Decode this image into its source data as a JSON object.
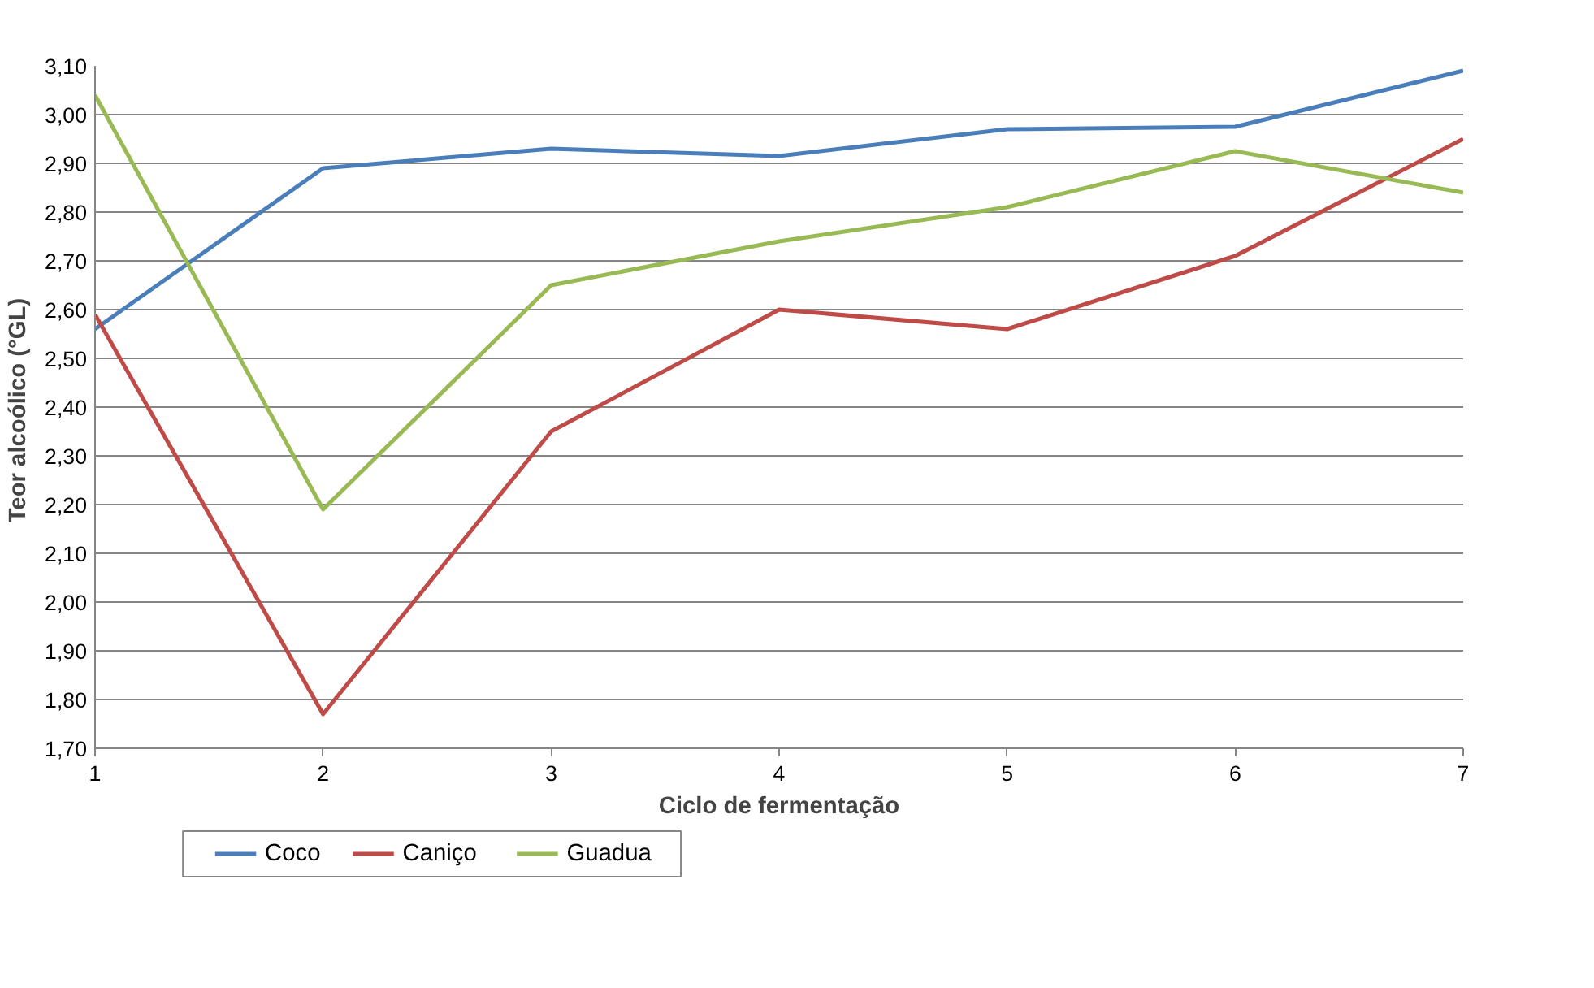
{
  "chart_data": {
    "type": "line",
    "xlabel": "Ciclo de fermentação",
    "ylabel": "Teor  alcoólico (°GL)",
    "x": [
      1,
      2,
      3,
      4,
      5,
      6,
      7
    ],
    "series": [
      {
        "name": "Coco",
        "color": "#4a7ebb",
        "values": [
          2.56,
          2.89,
          2.93,
          2.915,
          2.97,
          2.975,
          3.09
        ]
      },
      {
        "name": "Caniço",
        "color": "#be4b48",
        "values": [
          2.59,
          1.77,
          2.35,
          2.6,
          2.56,
          2.71,
          2.95
        ]
      },
      {
        "name": "Guadua",
        "color": "#98b954",
        "values": [
          3.04,
          2.19,
          2.65,
          2.74,
          2.81,
          2.925,
          2.84
        ]
      }
    ],
    "xlim": [
      1,
      7
    ],
    "xticks": [
      1,
      2,
      3,
      4,
      5,
      6,
      7
    ],
    "ylim": [
      1.7,
      3.1
    ],
    "yticks": [
      {
        "value": 1.7,
        "label": "1,70"
      },
      {
        "value": 1.8,
        "label": "1,80"
      },
      {
        "value": 1.9,
        "label": "1,90"
      },
      {
        "value": 2.0,
        "label": "2,00"
      },
      {
        "value": 2.1,
        "label": "2,10"
      },
      {
        "value": 2.2,
        "label": "2,20"
      },
      {
        "value": 2.3,
        "label": "2,30"
      },
      {
        "value": 2.4,
        "label": "2,40"
      },
      {
        "value": 2.5,
        "label": "2,50"
      },
      {
        "value": 2.6,
        "label": "2,60"
      },
      {
        "value": 2.7,
        "label": "2,70"
      },
      {
        "value": 2.8,
        "label": "2,80"
      },
      {
        "value": 2.9,
        "label": "2,90"
      },
      {
        "value": 3.0,
        "label": "3,00"
      },
      {
        "value": 3.1,
        "label": "3,10"
      }
    ],
    "grid": "y",
    "legend": "bottom left",
    "marker": "none",
    "line_style": "solid"
  }
}
